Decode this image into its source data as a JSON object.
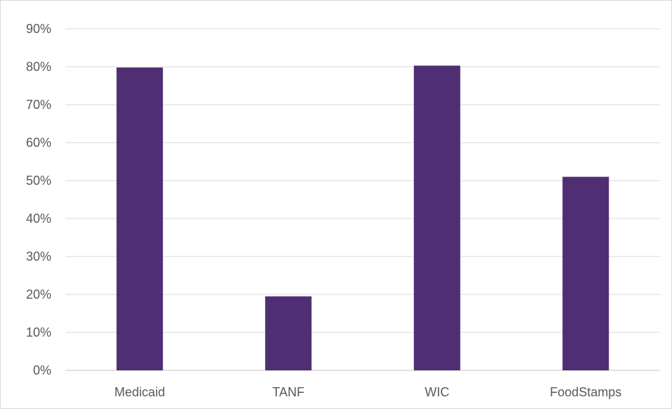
{
  "chart_data": {
    "type": "bar",
    "categories": [
      "Medicaid",
      "TANF",
      "WIC",
      "FoodStamps"
    ],
    "values": [
      79.8,
      19.5,
      80.3,
      51.0
    ],
    "value_unit": "%",
    "title": "",
    "xlabel": "",
    "ylabel": "",
    "ylim": [
      0,
      90
    ],
    "y_ticks": [
      0,
      10,
      20,
      30,
      40,
      50,
      60,
      70,
      80,
      90
    ],
    "y_tick_labels": [
      "0%",
      "10%",
      "20%",
      "30%",
      "40%",
      "50%",
      "60%",
      "70%",
      "80%",
      "90%"
    ],
    "grid": true,
    "legend": "none",
    "bar_color": "#4f2e73",
    "grid_color": "#d9d9d9"
  }
}
